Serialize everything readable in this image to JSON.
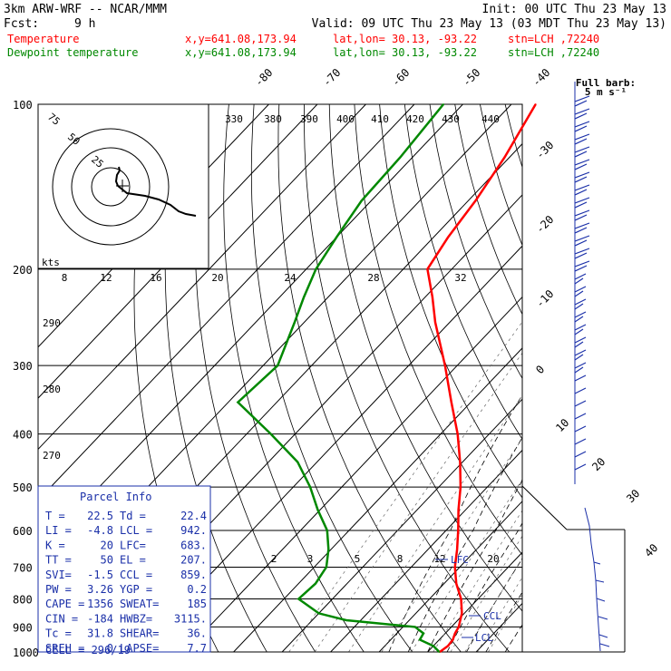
{
  "header": {
    "model": "3km ARW-WRF -- NCAR/MMM",
    "init": "Init: 00 UTC Thu 23 May 13",
    "fcst_label": "Fcst:",
    "fcst_value": "9 h",
    "valid": "Valid: 09 UTC Thu 23 May 13 (03 MDT Thu 23 May 13)",
    "temp_name": "Temperature",
    "dew_name": "Dewpoint temperature",
    "xy": "x,y=641.08,173.94",
    "latlon": "lat,lon= 30.13, -93.22",
    "stn": "stn=LCH ,72240"
  },
  "colors": {
    "temperature": "#ff0000",
    "dewpoint": "#008800",
    "parcel_box": "#1a2fa8",
    "wind": "#1a2fa8"
  },
  "barbs_legend": {
    "line1": "Full barb:",
    "line2": "5 m s⁻¹"
  },
  "hodograph": {
    "kts_label": "kts",
    "ring_labels": [
      "75",
      "50",
      "25"
    ]
  },
  "parcel_info": {
    "title": "Parcel Info",
    "rows": [
      [
        "T  =",
        "22.5",
        "Td =",
        "22.4"
      ],
      [
        "LI =",
        "-4.8",
        "LCL =",
        "942."
      ],
      [
        "K  =",
        "20",
        "LFC=",
        "683."
      ],
      [
        "TT =",
        "50",
        "EL =",
        "207."
      ],
      [
        "SVI=",
        "-1.5",
        "CCL =",
        "859."
      ],
      [
        "PW =",
        "3.26",
        "YGP =",
        "0.2"
      ],
      [
        "CAPE =",
        "1356",
        "SWEAT=",
        "185"
      ],
      [
        "CIN =",
        "-184",
        "HWBZ=",
        "3115."
      ],
      [
        "Tc =",
        "31.8",
        "SHEAR=",
        "36."
      ],
      [
        "SREH =",
        "0",
        "LAPSE=",
        "7.7"
      ]
    ],
    "cell": "CELL = 296/19"
  },
  "markers": {
    "lfc": "LFC",
    "ccl": "CCL",
    "lcl": "LCL"
  },
  "chart_data": {
    "type": "line",
    "title": "",
    "xlabel": "",
    "ylabel": "",
    "y_scale": "log",
    "ylim": [
      1000,
      100
    ],
    "pressure_ticks": [
      100,
      200,
      300,
      400,
      500,
      600,
      700,
      800,
      900,
      1000
    ],
    "isotherm_labels": [
      -80,
      -70,
      -60,
      -50,
      -40,
      -30,
      -20,
      -10,
      0,
      10,
      20,
      30,
      40
    ],
    "theta_labels": [
      330,
      380,
      390,
      400,
      410,
      420,
      430,
      440
    ],
    "theta_left_labels": [
      290,
      280,
      270
    ],
    "mixing_ratio_labels_upper": [
      8,
      12,
      16,
      20,
      24,
      28,
      32
    ],
    "mixing_ratio_labels_lower": [
      2,
      3,
      5,
      8,
      12,
      20
    ],
    "series": [
      {
        "name": "Temperature",
        "p": [
          1000,
          975,
          950,
          925,
          900,
          875,
          850,
          800,
          750,
          700,
          650,
          600,
          550,
          500,
          450,
          400,
          350,
          300,
          250,
          225,
          200,
          175,
          150,
          125,
          100
        ],
        "t": [
          22.5,
          23.0,
          22.8,
          22.0,
          21.5,
          20.5,
          19.5,
          16.5,
          12.5,
          9.0,
          6.0,
          2.5,
          -1.5,
          -5.5,
          -10.5,
          -16.5,
          -24.0,
          -32.5,
          -43.0,
          -48.5,
          -55.0,
          -57.0,
          -58.5,
          -61.0,
          -65.0
        ]
      },
      {
        "name": "Dewpoint temperature",
        "p": [
          1000,
          975,
          950,
          925,
          900,
          875,
          850,
          800,
          750,
          700,
          650,
          600,
          550,
          500,
          450,
          400,
          350,
          300,
          250,
          225,
          200,
          175,
          150,
          125,
          100
        ],
        "t": [
          22.4,
          20.0,
          16.0,
          15.5,
          12.5,
          -3.0,
          -10.0,
          -17.0,
          -16.5,
          -17.5,
          -20.5,
          -24.5,
          -30.5,
          -36.5,
          -44.0,
          -55.0,
          -68.0,
          -67.0,
          -72.0,
          -75.0,
          -78.0,
          -80.0,
          -82.0,
          -82.5,
          -84.0
        ]
      }
    ]
  }
}
